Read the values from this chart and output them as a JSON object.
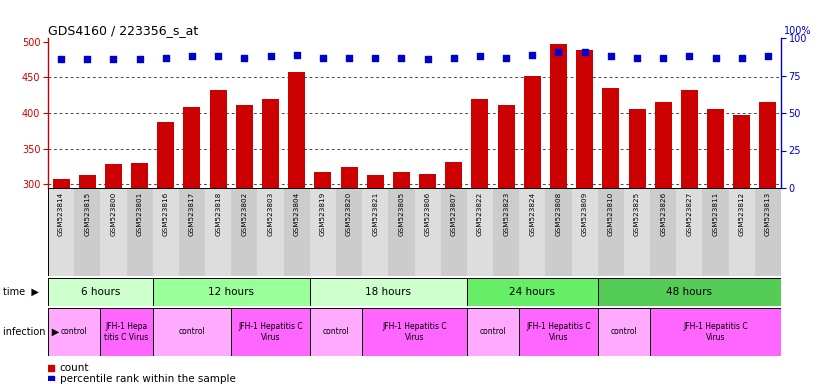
{
  "title": "GDS4160 / 223356_s_at",
  "samples": [
    "GSM523814",
    "GSM523815",
    "GSM523800",
    "GSM523801",
    "GSM523816",
    "GSM523817",
    "GSM523818",
    "GSM523802",
    "GSM523803",
    "GSM523804",
    "GSM523819",
    "GSM523820",
    "GSM523821",
    "GSM523805",
    "GSM523806",
    "GSM523807",
    "GSM523822",
    "GSM523823",
    "GSM523824",
    "GSM523808",
    "GSM523809",
    "GSM523810",
    "GSM523825",
    "GSM523826",
    "GSM523827",
    "GSM523811",
    "GSM523812",
    "GSM523813"
  ],
  "counts": [
    308,
    313,
    328,
    330,
    387,
    408,
    432,
    411,
    420,
    458,
    318,
    325,
    313,
    317,
    315,
    332,
    420,
    411,
    452,
    497,
    488,
    435,
    405,
    416,
    432,
    405,
    397,
    416
  ],
  "percentiles": [
    86,
    86,
    86,
    86,
    87,
    88,
    88,
    87,
    88,
    89,
    87,
    87,
    87,
    87,
    86,
    87,
    88,
    87,
    89,
    91,
    91,
    88,
    87,
    87,
    88,
    87,
    87,
    88
  ],
  "ylim_left": [
    295,
    505
  ],
  "ylim_right": [
    0,
    100
  ],
  "yticks_left": [
    300,
    350,
    400,
    450,
    500
  ],
  "yticks_right": [
    0,
    25,
    50,
    75,
    100
  ],
  "bar_color": "#cc0000",
  "dot_color": "#0000cc",
  "time_groups": [
    {
      "label": "6 hours",
      "start": 0,
      "end": 4,
      "color": "#ccffcc"
    },
    {
      "label": "12 hours",
      "start": 4,
      "end": 10,
      "color": "#99ff99"
    },
    {
      "label": "18 hours",
      "start": 10,
      "end": 16,
      "color": "#ccffcc"
    },
    {
      "label": "24 hours",
      "start": 16,
      "end": 21,
      "color": "#66ee66"
    },
    {
      "label": "48 hours",
      "start": 21,
      "end": 28,
      "color": "#55cc55"
    }
  ],
  "infection_groups": [
    {
      "label": "control",
      "start": 0,
      "end": 2,
      "color": "#ffaaff"
    },
    {
      "label": "JFH-1 Hepa\ntitis C Virus",
      "start": 2,
      "end": 4,
      "color": "#ff66ff"
    },
    {
      "label": "control",
      "start": 4,
      "end": 7,
      "color": "#ffaaff"
    },
    {
      "label": "JFH-1 Hepatitis C\nVirus",
      "start": 7,
      "end": 10,
      "color": "#ff66ff"
    },
    {
      "label": "control",
      "start": 10,
      "end": 12,
      "color": "#ffaaff"
    },
    {
      "label": "JFH-1 Hepatitis C\nVirus",
      "start": 12,
      "end": 16,
      "color": "#ff66ff"
    },
    {
      "label": "control",
      "start": 16,
      "end": 18,
      "color": "#ffaaff"
    },
    {
      "label": "JFH-1 Hepatitis C\nVirus",
      "start": 18,
      "end": 21,
      "color": "#ff66ff"
    },
    {
      "label": "control",
      "start": 21,
      "end": 23,
      "color": "#ffaaff"
    },
    {
      "label": "JFH-1 Hepatitis C\nVirus",
      "start": 23,
      "end": 28,
      "color": "#ff66ff"
    }
  ],
  "xticklabel_bg": "#dddddd",
  "fig_width": 8.26,
  "fig_height": 3.84,
  "dpi": 100
}
